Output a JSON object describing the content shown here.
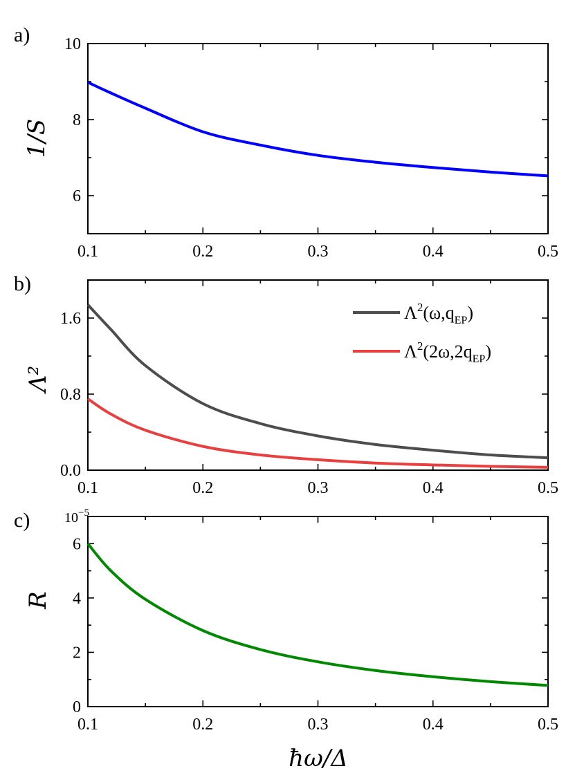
{
  "chart_data": [
    {
      "type": "line",
      "panel_label": "a)",
      "ylabel": "1/S",
      "xlim": [
        0.1,
        0.5
      ],
      "ylim": [
        5,
        10
      ],
      "xticks": [
        "0.1",
        "0.2",
        "0.3",
        "0.4",
        "0.5"
      ],
      "yticks": [
        "6",
        "8",
        "10"
      ],
      "ytick_values": [
        6,
        8,
        10
      ],
      "series": [
        {
          "color": "#0000ff",
          "x": [
            0.1,
            0.12,
            0.15,
            0.2,
            0.25,
            0.3,
            0.35,
            0.4,
            0.45,
            0.5
          ],
          "y": [
            8.98,
            8.7,
            8.3,
            7.68,
            7.33,
            7.06,
            6.88,
            6.74,
            6.62,
            6.52
          ]
        }
      ]
    },
    {
      "type": "line",
      "panel_label": "b)",
      "ylabel": "Λ²",
      "xlim": [
        0.1,
        0.5
      ],
      "ylim": [
        0,
        2
      ],
      "xticks": [
        "0.1",
        "0.2",
        "0.3",
        "0.4",
        "0.5"
      ],
      "yticks": [
        "0.0",
        "0.8",
        "1.6"
      ],
      "ytick_values": [
        0,
        0.8,
        1.6
      ],
      "legend": "top-right",
      "series": [
        {
          "name": "Λ²(ω,q_EP)",
          "color": "#4d4d4d",
          "x": [
            0.1,
            0.12,
            0.15,
            0.2,
            0.25,
            0.3,
            0.35,
            0.4,
            0.45,
            0.5
          ],
          "y": [
            1.74,
            1.48,
            1.1,
            0.7,
            0.49,
            0.36,
            0.27,
            0.21,
            0.16,
            0.13
          ]
        },
        {
          "name": "Λ²(2ω,2q_EP)",
          "color": "#e84040",
          "x": [
            0.1,
            0.12,
            0.15,
            0.2,
            0.25,
            0.3,
            0.35,
            0.4,
            0.45,
            0.5
          ],
          "y": [
            0.75,
            0.59,
            0.42,
            0.25,
            0.16,
            0.11,
            0.075,
            0.055,
            0.04,
            0.03
          ]
        }
      ]
    },
    {
      "type": "line",
      "panel_label": "c)",
      "ylabel": "R",
      "xlabel": "ħω/Δ",
      "xlim": [
        0.1,
        0.5
      ],
      "ylim": [
        0,
        7
      ],
      "y_scale_label": "10−5",
      "xticks": [
        "0.1",
        "0.2",
        "0.3",
        "0.4",
        "0.5"
      ],
      "yticks": [
        "0",
        "2",
        "4",
        "6"
      ],
      "ytick_values": [
        0,
        2,
        4,
        6
      ],
      "series": [
        {
          "color": "#008800",
          "x": [
            0.1,
            0.12,
            0.15,
            0.2,
            0.25,
            0.3,
            0.35,
            0.4,
            0.45,
            0.5
          ],
          "y": [
            6.0,
            5.0,
            3.95,
            2.8,
            2.1,
            1.65,
            1.33,
            1.1,
            0.92,
            0.78
          ]
        }
      ]
    }
  ],
  "legend": {
    "item1_base": "Λ",
    "item1_sup": "2",
    "item1_args": "(ω,q",
    "item1_sub": "EP",
    "item1_close": ")",
    "item2_base": "Λ",
    "item2_sup": "2",
    "item2_args": "(2ω,2q",
    "item2_sub": "EP",
    "item2_close": ")"
  },
  "exp": {
    "base": "10",
    "power": "−5"
  }
}
